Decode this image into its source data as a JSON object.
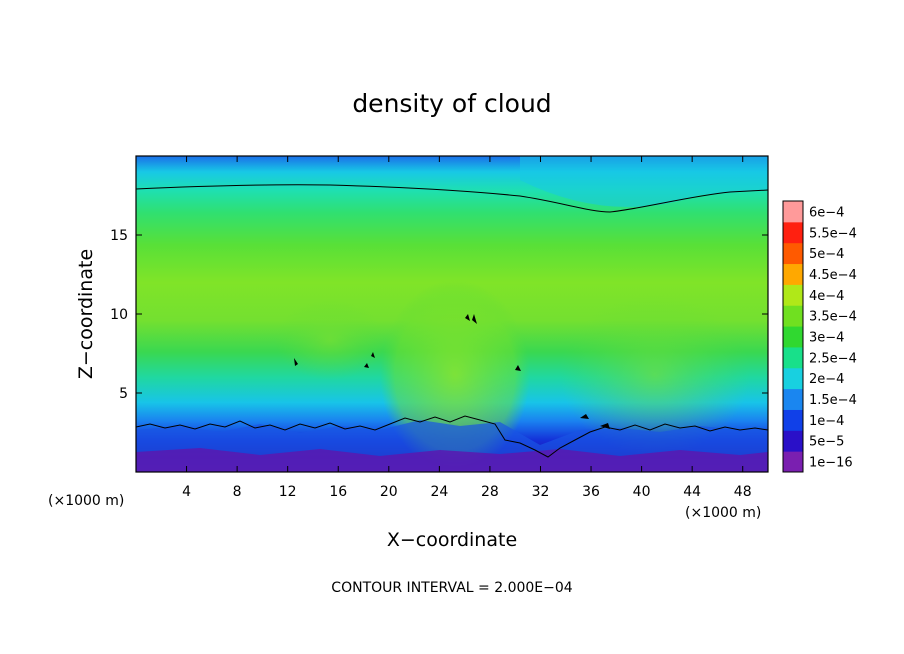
{
  "chart_data": {
    "type": "heatmap",
    "title": "density of cloud",
    "xlabel": "X−coordinate",
    "ylabel": "Z−coordinate",
    "x_unit": "(×1000 m)",
    "z_unit": "(×1000 m)",
    "xlim": [
      0,
      50
    ],
    "ylim": [
      0,
      20
    ],
    "x_ticks": [
      "4",
      "8",
      "12",
      "16",
      "20",
      "24",
      "28",
      "32",
      "36",
      "40",
      "44",
      "48"
    ],
    "x_tick_values": [
      4,
      8,
      12,
      16,
      20,
      24,
      28,
      32,
      36,
      40,
      44,
      48
    ],
    "y_ticks": [
      "5",
      "10",
      "15"
    ],
    "y_tick_values": [
      5,
      10,
      15
    ],
    "colorbar": {
      "labels": [
        "1e−16",
        "5e−5",
        "1e−4",
        "1.5e−4",
        "2e−4",
        "2.5e−4",
        "3e−4",
        "3.5e−4",
        "4e−4",
        "4.5e−4",
        "5e−4",
        "5.5e−4",
        "6e−4"
      ],
      "values": [
        1e-16,
        5e-05,
        0.0001,
        0.00015,
        0.0002,
        0.00025,
        0.0003,
        0.00035,
        0.0004,
        0.00045,
        0.0005,
        0.00055,
        0.0006
      ],
      "colors": [
        "#7a1fb0",
        "#2a10c8",
        "#1040e8",
        "#1a86f0",
        "#18d0e0",
        "#18e08a",
        "#30d830",
        "#70e020",
        "#b0e818",
        "#ffa800",
        "#ff5a00",
        "#ff2010",
        "#ff9a9a"
      ]
    },
    "contour_interval_text": "CONTOUR INTERVAL = 2.000E−04"
  }
}
